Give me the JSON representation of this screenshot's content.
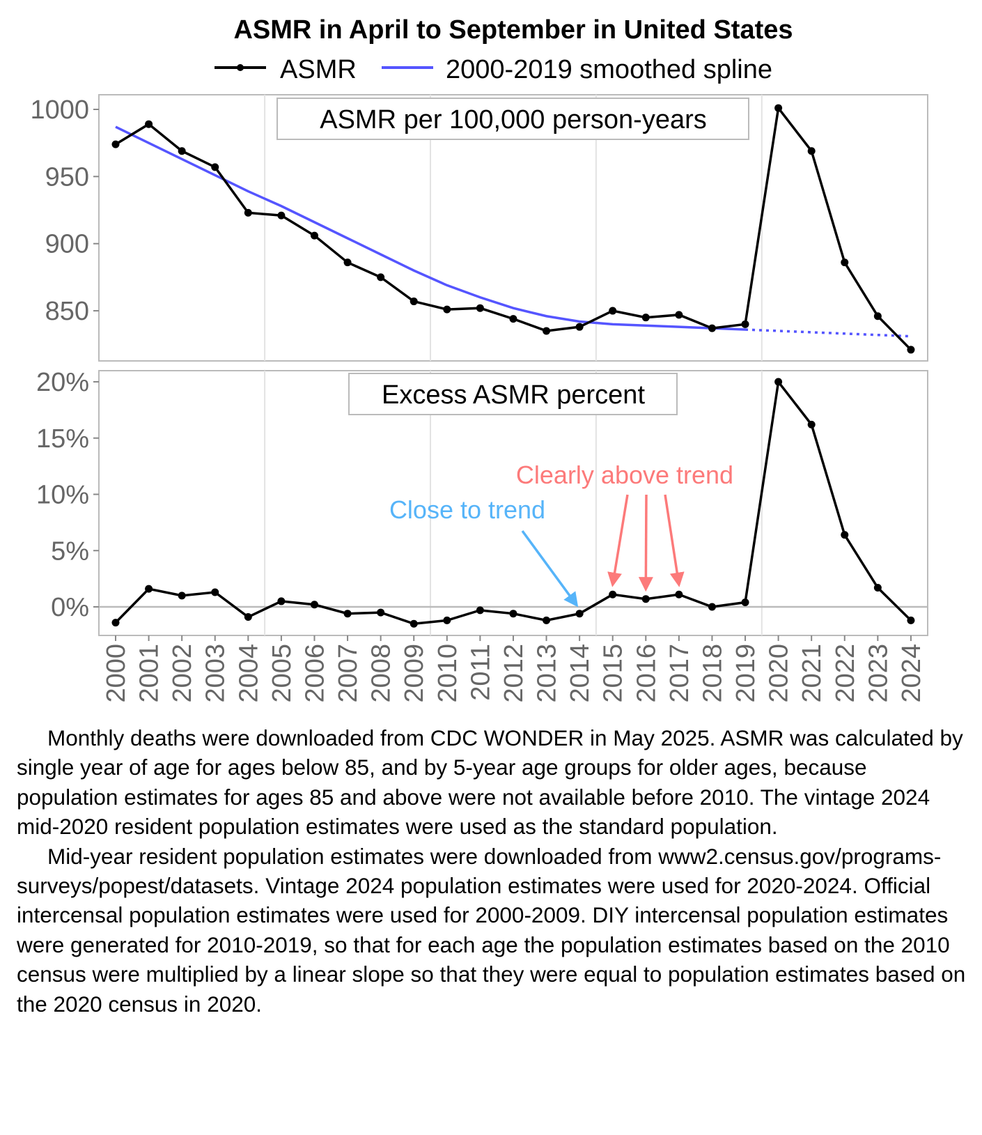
{
  "chart_data": [
    {
      "type": "line",
      "title": "ASMR in April to September in United States",
      "panel_label": "ASMR per 100,000 person-years",
      "legend": [
        {
          "name": "ASMR",
          "color": "#000000"
        },
        {
          "name": "2000-2019 smoothed spline",
          "color": "#5555ff"
        }
      ],
      "legend_placement": "top",
      "x": [
        2000,
        2001,
        2002,
        2003,
        2004,
        2005,
        2006,
        2007,
        2008,
        2009,
        2010,
        2011,
        2012,
        2013,
        2014,
        2015,
        2016,
        2017,
        2018,
        2019,
        2020,
        2021,
        2022,
        2023,
        2024
      ],
      "series": [
        {
          "name": "ASMR",
          "values": [
            974,
            989,
            969,
            957,
            923,
            921,
            906,
            886,
            875,
            857,
            851,
            852,
            844,
            835,
            838,
            850,
            845,
            847,
            837,
            840,
            1001,
            969,
            886,
            846,
            821
          ]
        },
        {
          "name": "2000-2019 smoothed spline",
          "values": [
            987,
            975,
            963,
            951,
            939,
            928,
            916,
            904,
            892,
            880,
            869,
            860,
            852,
            846,
            842,
            840,
            839,
            838,
            837,
            836,
            835,
            834,
            833,
            832,
            831
          ],
          "dotted_after": 2019
        }
      ],
      "yticks": [
        "850",
        "900",
        "950",
        "1000"
      ],
      "ytick_values": [
        850,
        900,
        950,
        1000
      ],
      "ylim": [
        811,
        1008
      ]
    },
    {
      "type": "line",
      "panel_label": "Excess ASMR percent",
      "x": [
        2000,
        2001,
        2002,
        2003,
        2004,
        2005,
        2006,
        2007,
        2008,
        2009,
        2010,
        2011,
        2012,
        2013,
        2014,
        2015,
        2016,
        2017,
        2018,
        2019,
        2020,
        2021,
        2022,
        2023,
        2024
      ],
      "series": [
        {
          "name": "Excess ASMR percent",
          "values": [
            -1.4,
            1.6,
            1.0,
            1.3,
            -0.9,
            0.5,
            0.2,
            -0.6,
            -0.5,
            -1.5,
            -1.2,
            -0.3,
            -0.6,
            -1.2,
            -0.6,
            1.1,
            0.7,
            1.1,
            0.0,
            0.4,
            20.0,
            16.2,
            6.4,
            1.7,
            -1.2
          ]
        }
      ],
      "yticks": [
        "0%",
        "5%",
        "10%",
        "15%",
        "20%"
      ],
      "ytick_values": [
        0,
        5,
        10,
        15,
        20
      ],
      "ylim": [
        -2.5,
        20.8
      ],
      "annotations": [
        {
          "text": "Close to trend",
          "color": "#56b4f9",
          "points_to": [
            2014
          ]
        },
        {
          "text": "Clearly above trend",
          "color": "#fc7a7a",
          "points_to": [
            2015,
            2016,
            2017
          ]
        }
      ]
    }
  ],
  "xtick_labels": [
    "2000",
    "2001",
    "2002",
    "2003",
    "2004",
    "2005",
    "2006",
    "2007",
    "2008",
    "2009",
    "2010",
    "2011",
    "2012",
    "2013",
    "2014",
    "2015",
    "2016",
    "2017",
    "2018",
    "2019",
    "2020",
    "2021",
    "2022",
    "2023",
    "2024"
  ],
  "footnote": [
    "Monthly deaths were downloaded from CDC WONDER in May 2025. ASMR was calculated by single year of age for ages below 85, and by 5-year age groups for older ages, because population estimates for ages 85 and above were not available before 2010. The vintage 2024 mid-2020 resident population estimates were used as the standard population.",
    "Mid-year resident population estimates were downloaded from www2.census.gov/programs-surveys/popest/datasets. Vintage 2024 population estimates were used for 2020-2024. Official intercensal population estimates were used for 2000-2009. DIY intercensal population estimates were generated for 2010-2019, so that for each age the population estimates based on the 2010 census were multiplied by a linear slope so that they were equal to population estimates based on the 2020 census in 2020."
  ]
}
